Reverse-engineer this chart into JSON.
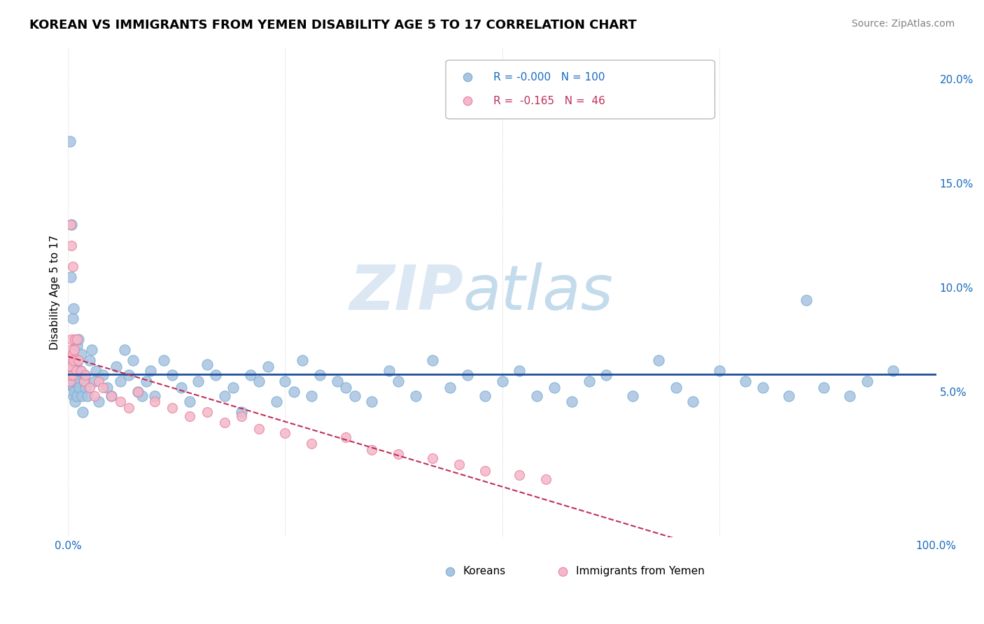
{
  "title": "KOREAN VS IMMIGRANTS FROM YEMEN DISABILITY AGE 5 TO 17 CORRELATION CHART",
  "source": "Source: ZipAtlas.com",
  "ylabel": "Disability Age 5 to 17",
  "xlim": [
    0.0,
    1.0
  ],
  "ylim": [
    -0.02,
    0.215
  ],
  "yticks": [
    0.0,
    0.05,
    0.1,
    0.15,
    0.2
  ],
  "ytick_labels": [
    "",
    "5.0%",
    "10.0%",
    "15.0%",
    "20.0%"
  ],
  "legend_r_korean": "-0.000",
  "legend_n_korean": "100",
  "legend_r_yemen": "-0.165",
  "legend_n_yemen": "46",
  "korean_color": "#a8c4e0",
  "korean_edge": "#7aafd4",
  "korean_line_color": "#1f4e99",
  "yemen_color": "#f4b8c8",
  "yemen_edge": "#e87fa0",
  "yemen_line_color": "#c0305a",
  "korean_x": [
    0.002,
    0.003,
    0.003,
    0.004,
    0.004,
    0.005,
    0.005,
    0.006,
    0.006,
    0.007,
    0.007,
    0.008,
    0.008,
    0.009,
    0.01,
    0.01,
    0.011,
    0.012,
    0.013,
    0.014,
    0.015,
    0.016,
    0.017,
    0.018,
    0.019,
    0.02,
    0.022,
    0.025,
    0.027,
    0.03,
    0.032,
    0.035,
    0.04,
    0.045,
    0.05,
    0.055,
    0.06,
    0.065,
    0.07,
    0.075,
    0.08,
    0.085,
    0.09,
    0.095,
    0.1,
    0.11,
    0.12,
    0.13,
    0.14,
    0.15,
    0.16,
    0.17,
    0.18,
    0.19,
    0.2,
    0.21,
    0.22,
    0.23,
    0.24,
    0.25,
    0.26,
    0.27,
    0.28,
    0.29,
    0.31,
    0.32,
    0.33,
    0.35,
    0.37,
    0.38,
    0.4,
    0.42,
    0.44,
    0.46,
    0.48,
    0.5,
    0.52,
    0.54,
    0.56,
    0.58,
    0.6,
    0.62,
    0.65,
    0.68,
    0.7,
    0.72,
    0.75,
    0.78,
    0.8,
    0.83,
    0.85,
    0.87,
    0.9,
    0.92,
    0.95,
    0.002,
    0.003,
    0.004,
    0.005,
    0.006
  ],
  "korean_y": [
    0.055,
    0.058,
    0.062,
    0.06,
    0.053,
    0.057,
    0.064,
    0.052,
    0.048,
    0.055,
    0.05,
    0.058,
    0.045,
    0.063,
    0.072,
    0.048,
    0.055,
    0.075,
    0.052,
    0.06,
    0.068,
    0.048,
    0.04,
    0.055,
    0.058,
    0.052,
    0.048,
    0.065,
    0.07,
    0.055,
    0.06,
    0.045,
    0.058,
    0.052,
    0.048,
    0.062,
    0.055,
    0.07,
    0.058,
    0.065,
    0.05,
    0.048,
    0.055,
    0.06,
    0.048,
    0.065,
    0.058,
    0.052,
    0.045,
    0.055,
    0.063,
    0.058,
    0.048,
    0.052,
    0.04,
    0.058,
    0.055,
    0.062,
    0.045,
    0.055,
    0.05,
    0.065,
    0.048,
    0.058,
    0.055,
    0.052,
    0.048,
    0.045,
    0.06,
    0.055,
    0.048,
    0.065,
    0.052,
    0.058,
    0.048,
    0.055,
    0.06,
    0.048,
    0.052,
    0.045,
    0.055,
    0.058,
    0.048,
    0.065,
    0.052,
    0.045,
    0.06,
    0.055,
    0.052,
    0.048,
    0.094,
    0.052,
    0.048,
    0.055,
    0.06,
    0.17,
    0.105,
    0.13,
    0.085,
    0.09
  ],
  "yemen_x": [
    0.001,
    0.002,
    0.002,
    0.003,
    0.003,
    0.004,
    0.004,
    0.005,
    0.005,
    0.006,
    0.007,
    0.008,
    0.009,
    0.01,
    0.012,
    0.015,
    0.018,
    0.02,
    0.025,
    0.03,
    0.035,
    0.04,
    0.05,
    0.06,
    0.07,
    0.08,
    0.1,
    0.12,
    0.14,
    0.16,
    0.18,
    0.2,
    0.22,
    0.25,
    0.28,
    0.32,
    0.35,
    0.38,
    0.42,
    0.45,
    0.48,
    0.52,
    0.55,
    0.003,
    0.004,
    0.005
  ],
  "yemen_y": [
    0.06,
    0.055,
    0.058,
    0.07,
    0.065,
    0.075,
    0.062,
    0.068,
    0.058,
    0.065,
    0.07,
    0.075,
    0.06,
    0.075,
    0.065,
    0.06,
    0.055,
    0.058,
    0.052,
    0.048,
    0.055,
    0.052,
    0.048,
    0.045,
    0.042,
    0.05,
    0.045,
    0.042,
    0.038,
    0.04,
    0.035,
    0.038,
    0.032,
    0.03,
    0.025,
    0.028,
    0.022,
    0.02,
    0.018,
    0.015,
    0.012,
    0.01,
    0.008,
    0.13,
    0.12,
    0.11
  ]
}
